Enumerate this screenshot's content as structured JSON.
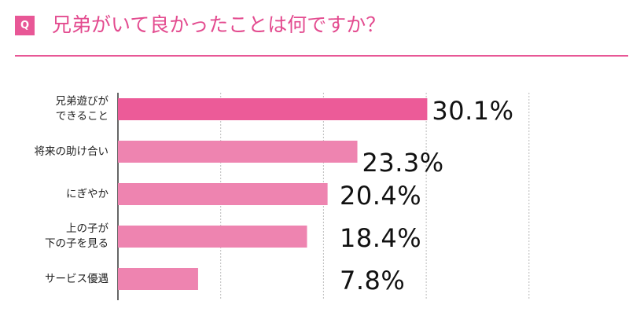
{
  "header": {
    "badge": "Q",
    "title": "兄弟がいて良かったことは何ですか？"
  },
  "colors": {
    "accent": "#e85796",
    "bar_top": "#ec5b98",
    "bar": "#ee84b0",
    "grid": "#bbbbbb"
  },
  "chart_data": {
    "type": "bar",
    "orientation": "horizontal",
    "title": "兄弟がいて良かったことは何ですか？",
    "categories": [
      "兄弟遊びが\nできること",
      "将来の助け合い",
      "にぎやか",
      "上の子が\n下の子を見る",
      "サービス優遇"
    ],
    "values": [
      30.1,
      23.3,
      20.4,
      18.4,
      7.8
    ],
    "value_labels": [
      "30.1%",
      "23.3%",
      "20.4%",
      "18.4%",
      "7.8%"
    ],
    "unit": "%",
    "xlim": [
      0,
      40
    ],
    "grid": true,
    "xlabel": "",
    "ylabel": ""
  }
}
